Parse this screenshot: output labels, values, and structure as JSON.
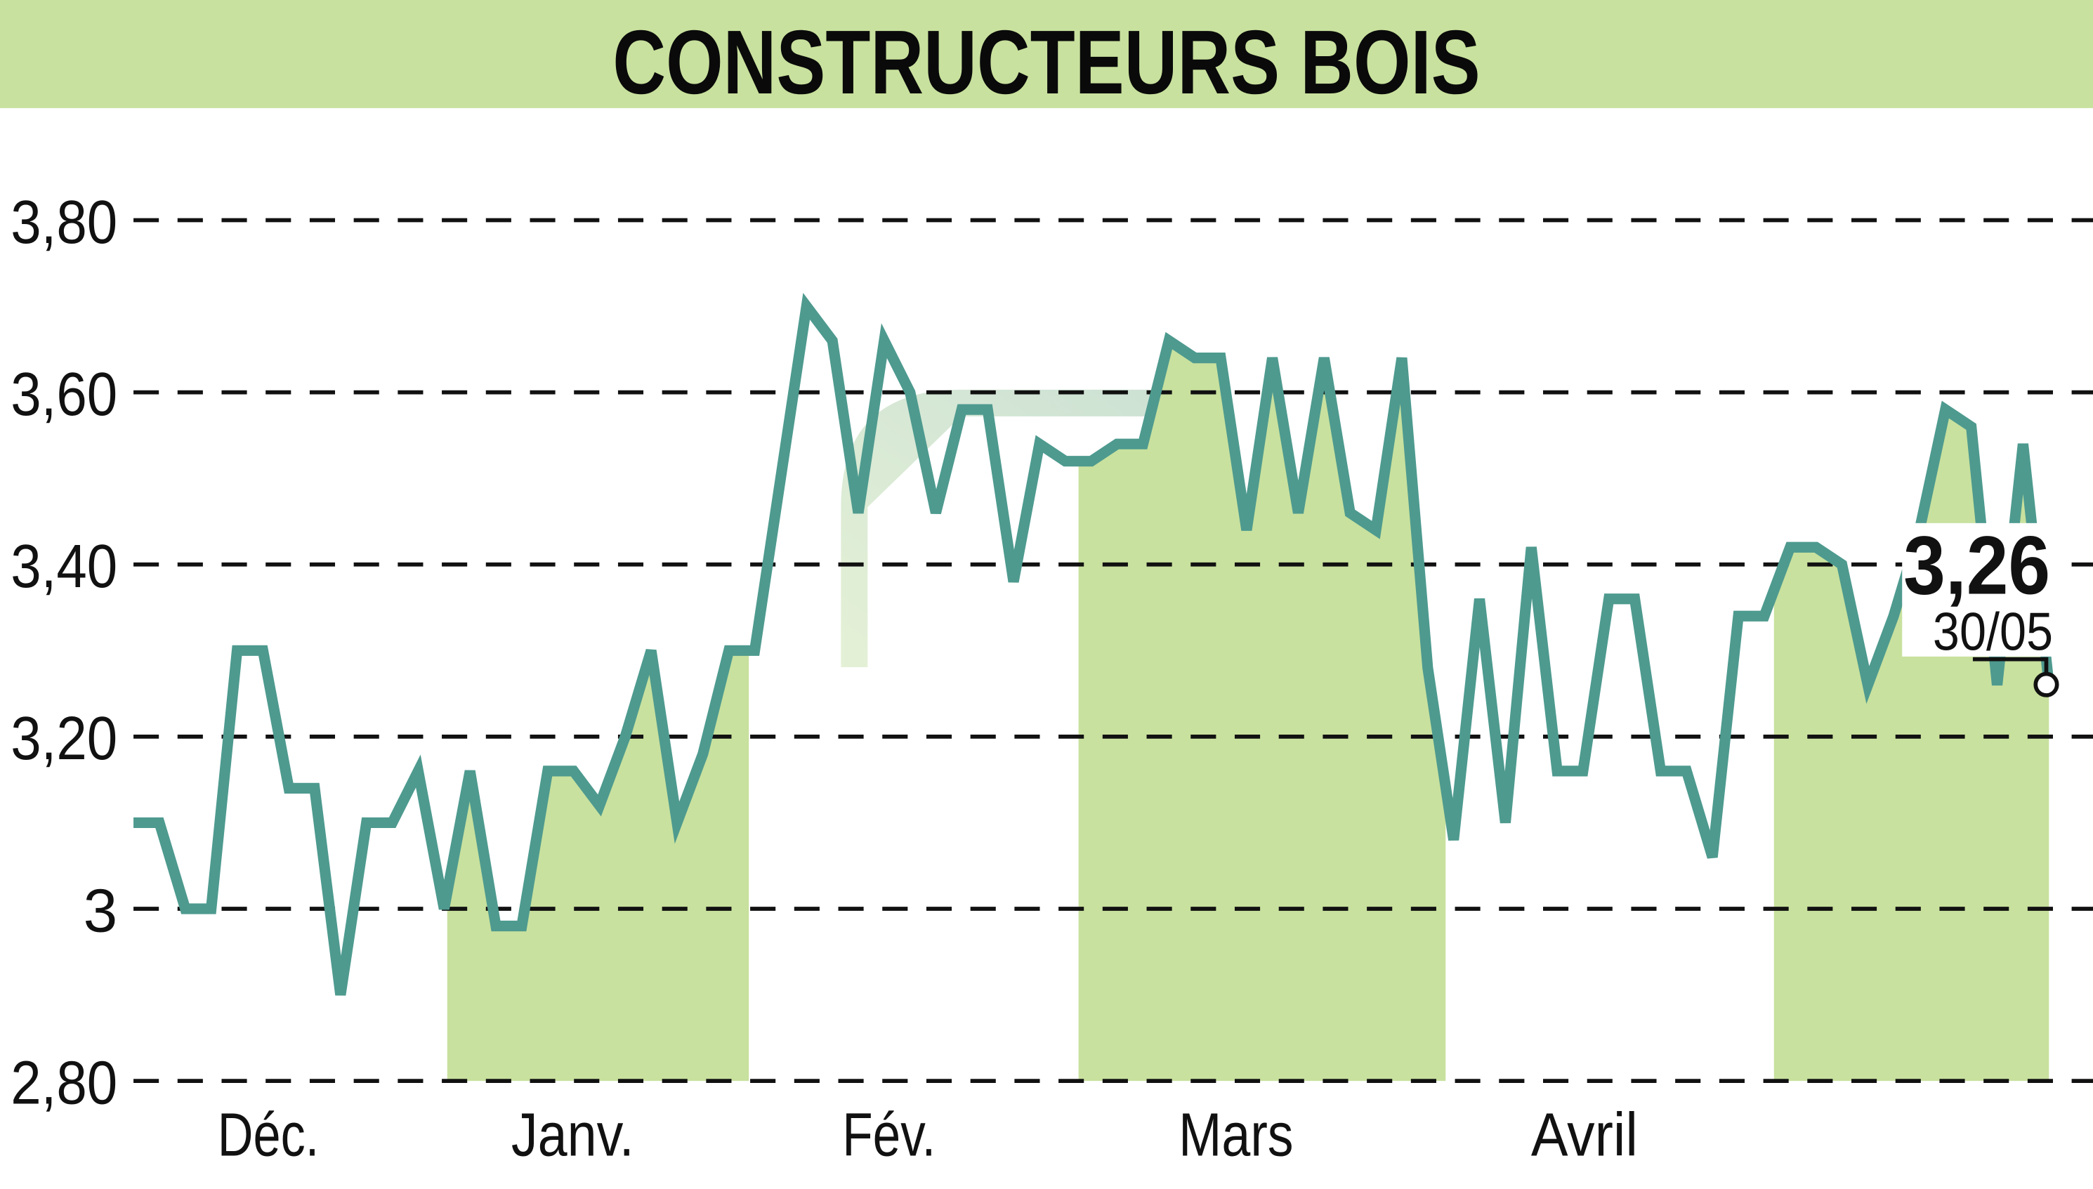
{
  "header": {
    "title": "CONSTRUCTEURS BOIS",
    "background": "#c8e19e"
  },
  "colors": {
    "line": "#4e9a8f",
    "fill": "#c8e19e",
    "grid": "#111111",
    "watermark": "#a8ccc0"
  },
  "last_value": {
    "value": "3,26",
    "date": "30/05"
  },
  "chart_data": {
    "type": "line",
    "title": "CONSTRUCTEURS BOIS",
    "xlabel": "",
    "ylabel": "",
    "ylim": [
      2.8,
      3.8
    ],
    "yticks": [
      "3,80",
      "3,60",
      "3,40",
      "3,20",
      "3",
      "2,80"
    ],
    "ytick_values": [
      3.8,
      3.6,
      3.4,
      3.2,
      3.0,
      2.8
    ],
    "x_month_labels": [
      "Déc.",
      "Janv.",
      "Fév.",
      "Mars",
      "Avril"
    ],
    "grid": "horizontal dashed",
    "shaded_month_bands": [
      "Janv.",
      "Mars",
      "Mai"
    ],
    "last_point": {
      "date": "30/05",
      "value": 3.26
    },
    "values": [
      3.1,
      3.1,
      3.0,
      3.0,
      3.3,
      3.3,
      3.14,
      3.14,
      2.9,
      3.1,
      3.1,
      3.16,
      3.0,
      3.16,
      2.98,
      2.98,
      3.16,
      3.16,
      3.12,
      3.2,
      3.3,
      3.1,
      3.18,
      3.3,
      3.3,
      3.5,
      3.7,
      3.66,
      3.46,
      3.66,
      3.6,
      3.46,
      3.58,
      3.58,
      3.38,
      3.54,
      3.52,
      3.52,
      3.54,
      3.54,
      3.66,
      3.64,
      3.64,
      3.44,
      3.64,
      3.46,
      3.64,
      3.46,
      3.44,
      3.64,
      3.28,
      3.08,
      3.36,
      3.1,
      3.42,
      3.16,
      3.16,
      3.36,
      3.36,
      3.16,
      3.16,
      3.06,
      3.34,
      3.34,
      3.42,
      3.42,
      3.4,
      3.26,
      3.34,
      3.44,
      3.58,
      3.56,
      3.26,
      3.54,
      3.26
    ]
  }
}
